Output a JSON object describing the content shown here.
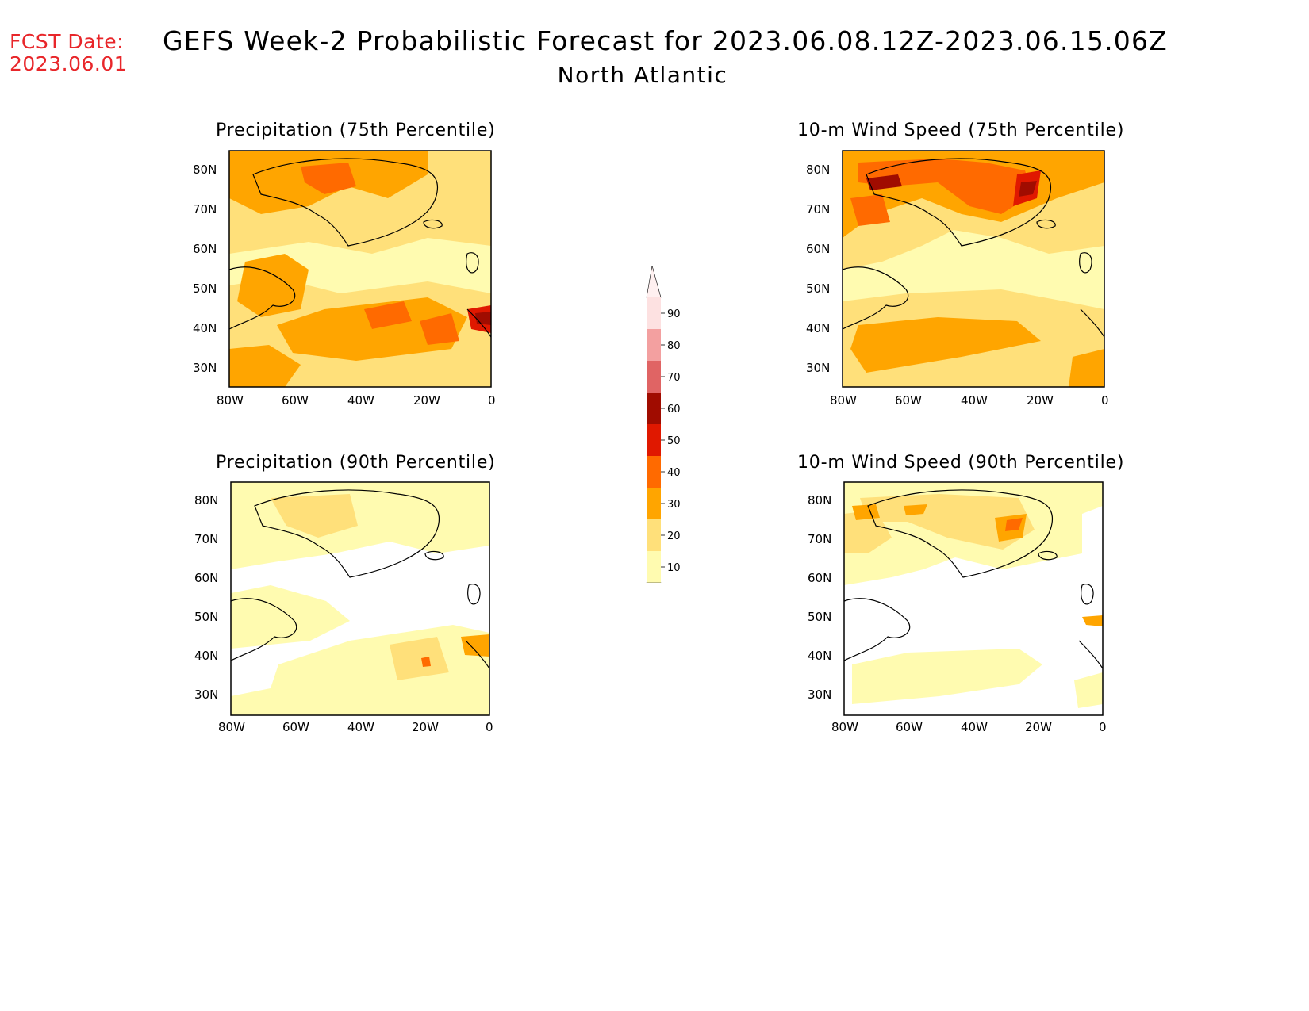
{
  "header": {
    "fcst_label": "FCST Date:",
    "fcst_date": "2023.06.01",
    "title": "GEFS Week-2 Probabilistic Forecast for 2023.06.08.12Z-2023.06.15.06Z",
    "subtitle": "North Atlantic"
  },
  "axes": {
    "lat_labels": [
      "80N",
      "70N",
      "60N",
      "50N",
      "40N",
      "30N"
    ],
    "lon_labels": [
      "80W",
      "60W",
      "40W",
      "20W",
      "0"
    ]
  },
  "panels": [
    {
      "id": "precip-75",
      "title": "Precipitation (75th Percentile)"
    },
    {
      "id": "wind-75",
      "title": "10-m Wind Speed (75th Percentile)"
    },
    {
      "id": "precip-90",
      "title": "Precipitation (90th Percentile)"
    },
    {
      "id": "wind-90",
      "title": "10-m Wind Speed (90th Percentile)"
    }
  ],
  "colorbar": {
    "labels": [
      "90",
      "80",
      "70",
      "60",
      "50",
      "40",
      "30",
      "20",
      "10"
    ],
    "colors": [
      "#fde1e1",
      "#f3a0a0",
      "#e06464",
      "#a00c00",
      "#e01800",
      "#ff6a00",
      "#ffa500",
      "#ffe07a",
      "#fffbb0"
    ]
  }
}
